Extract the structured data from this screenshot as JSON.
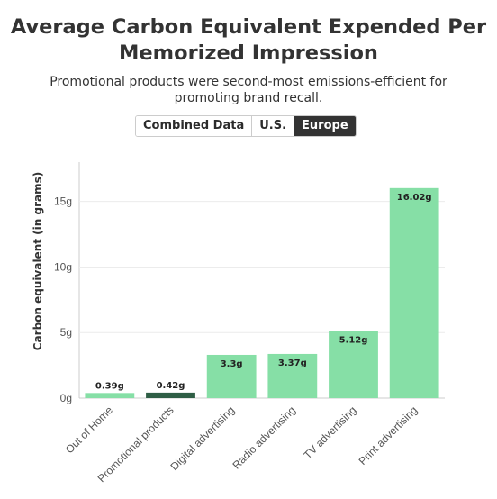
{
  "title": "Average Carbon Equivalent Expended Per Memorized Impression",
  "subtitle": "Promotional products were second-most emissions-efficient for promoting brand recall.",
  "toggle": {
    "options": [
      "Combined Data",
      "U.S.",
      "Europe"
    ],
    "selected": "Europe"
  },
  "colors": {
    "bar": "#86dfa6",
    "highlight": "#2e5e45",
    "grid": "#ececec",
    "axis": "#cccccc"
  },
  "chart_data": {
    "type": "bar",
    "ylabel": "Carbon equivalent (in grams)",
    "xlabel": "",
    "ylim": [
      0,
      18
    ],
    "yticks": [
      0,
      5,
      10,
      15
    ],
    "ytick_labels": [
      "0g",
      "5g",
      "10g",
      "15g"
    ],
    "grid": true,
    "categories": [
      "Out of Home",
      "Promotional products",
      "Digital advertising",
      "Radio advertising",
      "TV advertising",
      "Print advertising"
    ],
    "values": [
      0.39,
      0.42,
      3.3,
      3.37,
      5.12,
      16.02
    ],
    "data_labels": [
      "0.39g",
      "0.42g",
      "3.3g",
      "3.37g",
      "5.12g",
      "16.02g"
    ],
    "highlighted_category": "Promotional products"
  }
}
